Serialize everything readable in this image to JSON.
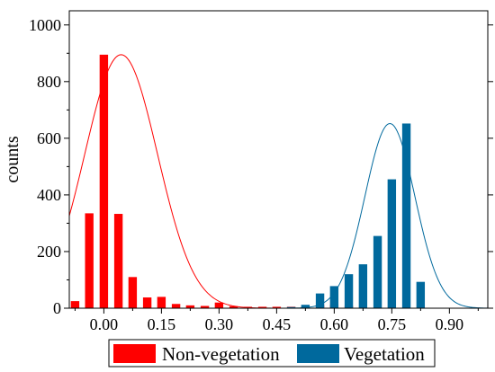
{
  "chart_data": {
    "type": "bar",
    "xlabel": "",
    "ylabel": "counts",
    "xlim": [
      -0.09,
      1.0
    ],
    "ylim": [
      0,
      1050
    ],
    "x_ticks": [
      "0.00",
      "0.15",
      "0.30",
      "0.45",
      "0.60",
      "0.75",
      "0.90"
    ],
    "x_tick_values": [
      0.0,
      0.15,
      0.3,
      0.45,
      0.6,
      0.75,
      0.9
    ],
    "y_ticks": [
      "0",
      "200",
      "400",
      "600",
      "800",
      "1000"
    ],
    "y_tick_values": [
      0,
      200,
      400,
      600,
      800,
      1000
    ],
    "bar_width": 0.022,
    "legend_position": "bottom-center",
    "series": [
      {
        "name": "Non-vegetation",
        "color": "#ff0000",
        "x": [
          -0.075,
          -0.038,
          0.0,
          0.038,
          0.075,
          0.113,
          0.15,
          0.188,
          0.225,
          0.263,
          0.3,
          0.338,
          0.375,
          0.413,
          0.45,
          0.488,
          0.525,
          0.563,
          0.6,
          0.638
        ],
        "values": [
          25,
          335,
          895,
          333,
          110,
          38,
          40,
          15,
          10,
          8,
          20,
          7,
          5,
          5,
          5,
          5,
          5,
          10,
          12,
          8
        ],
        "fit": {
          "type": "gaussian",
          "peak": 895,
          "mean": 0.045,
          "sigma": 0.095
        }
      },
      {
        "name": "Vegetation",
        "color": "#00699d",
        "x": [
          0.488,
          0.525,
          0.563,
          0.6,
          0.638,
          0.675,
          0.713,
          0.75,
          0.788,
          0.825
        ],
        "values": [
          4,
          12,
          52,
          78,
          120,
          155,
          255,
          455,
          652,
          93
        ],
        "fit": {
          "type": "gaussian",
          "peak": 652,
          "mean": 0.745,
          "sigma": 0.065
        }
      }
    ]
  }
}
